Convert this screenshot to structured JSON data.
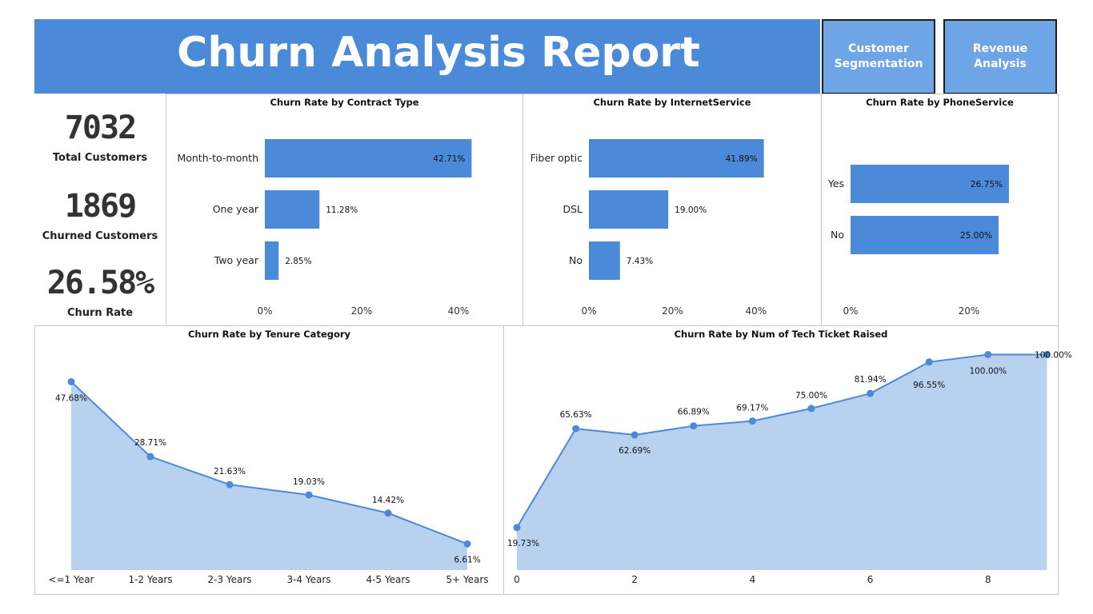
{
  "header": {
    "title": "Churn Analysis Report"
  },
  "nav": {
    "customer_segmentation": "Customer Segmentation",
    "revenue_analysis": "Revenue Analysis"
  },
  "kpis": [
    {
      "value": "7032",
      "label": "Total Customers"
    },
    {
      "value": "1869",
      "label": "Churned Customers"
    },
    {
      "value": "26.58%",
      "label": "Churn Rate"
    }
  ],
  "colors": {
    "accent": "#4a8ad9",
    "nav": "#6ea5e6",
    "area_fill": "#b7d1ef"
  },
  "chart_data": [
    {
      "type": "bar",
      "orientation": "horizontal",
      "title": "Churn Rate by Contract Type",
      "categories": [
        "Month-to-month",
        "One year",
        "Two year"
      ],
      "values": [
        42.71,
        11.28,
        2.85
      ],
      "labels": [
        "42.71%",
        "11.28%",
        "2.85%"
      ],
      "xticks": [
        "0%",
        "20%",
        "40%"
      ],
      "xlim": [
        0,
        45
      ]
    },
    {
      "type": "bar",
      "orientation": "horizontal",
      "title": "Churn Rate by InternetService",
      "categories": [
        "Fiber optic",
        "DSL",
        "No"
      ],
      "values": [
        41.89,
        19.0,
        7.43
      ],
      "labels": [
        "41.89%",
        "19.00%",
        "7.43%"
      ],
      "xticks": [
        "0%",
        "20%",
        "40%"
      ],
      "xlim": [
        0,
        45
      ]
    },
    {
      "type": "bar",
      "orientation": "horizontal",
      "title": "Churn Rate by PhoneService",
      "categories": [
        "Yes",
        "No"
      ],
      "values": [
        26.75,
        25.0
      ],
      "labels": [
        "26.75%",
        "25.00%"
      ],
      "xticks": [
        "0%",
        "20%"
      ],
      "xlim": [
        0,
        35
      ]
    },
    {
      "type": "area",
      "title": "Churn Rate by Tenure Category",
      "categories": [
        "<=1 Year",
        "1-2 Years",
        "2-3 Years",
        "3-4 Years",
        "4-5 Years",
        "5+ Years"
      ],
      "values": [
        47.68,
        28.71,
        21.63,
        19.03,
        14.42,
        6.61
      ],
      "labels": [
        "47.68%",
        "28.71%",
        "21.63%",
        "19.03%",
        "14.42%",
        "6.61%"
      ],
      "ylim": [
        0,
        50
      ]
    },
    {
      "type": "area",
      "title": "Churn Rate by Num of Tech Ticket Raised",
      "x": [
        0,
        1,
        2,
        3,
        4,
        5,
        6,
        7,
        8,
        9
      ],
      "values": [
        19.73,
        65.63,
        62.69,
        66.89,
        69.17,
        75.0,
        81.94,
        96.55,
        100.0,
        100.0
      ],
      "labels": [
        "19.73%",
        "65.63%",
        "62.69%",
        "66.89%",
        "69.17%",
        "75.00%",
        "81.94%",
        "96.55%",
        "100.00%",
        "100.00%"
      ],
      "xticks": [
        "0",
        "2",
        "4",
        "6",
        "8"
      ],
      "ylim": [
        0,
        100
      ]
    }
  ]
}
